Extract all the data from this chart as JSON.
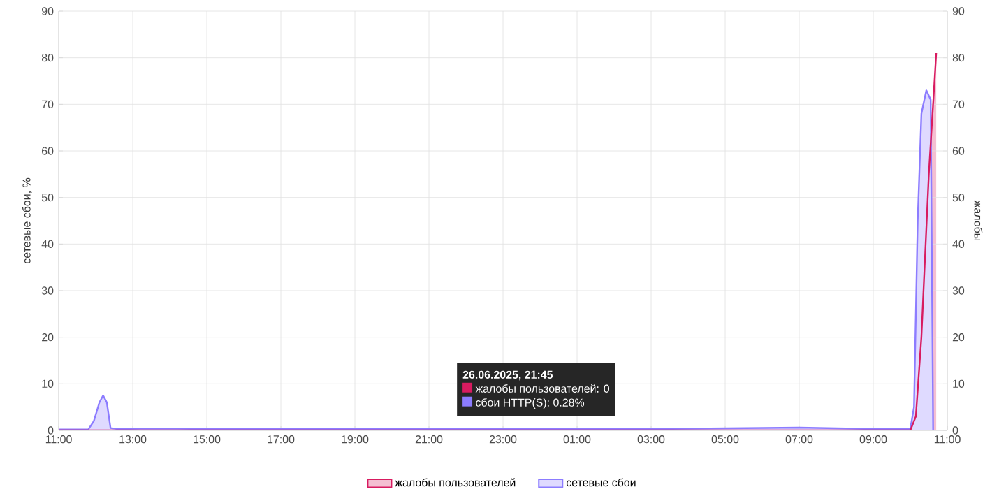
{
  "chart_data": {
    "type": "area",
    "ylabel": "сетевые сбои, %",
    "y2label": "жалобы",
    "xlim": [
      "2025-06-26T11:00",
      "2025-06-27T11:00"
    ],
    "xticks": [
      {
        "value": "2025-06-26T11:00",
        "label": "11:00"
      },
      {
        "value": "2025-06-26T13:00",
        "label": "13:00"
      },
      {
        "value": "2025-06-26T15:00",
        "label": "15:00"
      },
      {
        "value": "2025-06-26T17:00",
        "label": "17:00"
      },
      {
        "value": "2025-06-26T19:00",
        "label": "19:00"
      },
      {
        "value": "2025-06-26T21:00",
        "label": "21:00"
      },
      {
        "value": "2025-06-26T23:00",
        "label": "23:00"
      },
      {
        "value": "2025-06-27T01:00",
        "label": "01:00"
      },
      {
        "value": "2025-06-27T03:00",
        "label": "03:00"
      },
      {
        "value": "2025-06-27T05:00",
        "label": "05:00"
      },
      {
        "value": "2025-06-27T07:00",
        "label": "07:00"
      },
      {
        "value": "2025-06-27T09:00",
        "label": "09:00"
      },
      {
        "value": "2025-06-27T11:00",
        "label": "11:00"
      }
    ],
    "ylim": [
      0,
      90
    ],
    "yticks": [
      0,
      10,
      20,
      30,
      40,
      50,
      60,
      70,
      80,
      90
    ],
    "y2lim": [
      0,
      90
    ],
    "y2ticks": [
      0,
      10,
      20,
      30,
      40,
      50,
      60,
      70,
      80,
      90
    ],
    "series": [
      {
        "name": "жалобы пользователей",
        "color": "#d81b60",
        "axis": "y2",
        "x": [
          "2025-06-26T11:00",
          "2025-06-26T15:00",
          "2025-06-26T19:00",
          "2025-06-26T21:45",
          "2025-06-27T01:00",
          "2025-06-27T05:00",
          "2025-06-27T09:00",
          "2025-06-27T10:00",
          "2025-06-27T10:09",
          "2025-06-27T10:18",
          "2025-06-27T10:30",
          "2025-06-27T10:42"
        ],
        "values": [
          0,
          0,
          0,
          0,
          0,
          0,
          0,
          0,
          3,
          20,
          55,
          81
        ]
      },
      {
        "name": "сетевые сбои",
        "color": "#8c7cff",
        "axis": "y",
        "x": [
          "2025-06-26T11:00",
          "2025-06-26T11:48",
          "2025-06-26T11:57",
          "2025-06-26T12:06",
          "2025-06-26T12:12",
          "2025-06-26T12:18",
          "2025-06-26T12:24",
          "2025-06-26T12:36",
          "2025-06-26T13:30",
          "2025-06-26T15:00",
          "2025-06-26T17:00",
          "2025-06-26T19:00",
          "2025-06-26T21:45",
          "2025-06-26T23:00",
          "2025-06-27T03:00",
          "2025-06-27T07:00",
          "2025-06-27T09:00",
          "2025-06-27T10:00",
          "2025-06-27T10:06",
          "2025-06-27T10:12",
          "2025-06-27T10:18",
          "2025-06-27T10:26",
          "2025-06-27T10:33",
          "2025-06-27T10:37"
        ],
        "values": [
          0.2,
          0.2,
          2,
          6,
          7.5,
          6,
          0.5,
          0.3,
          0.4,
          0.3,
          0.3,
          0.3,
          0.3,
          0.3,
          0.3,
          0.6,
          0.3,
          0.3,
          5,
          45,
          68,
          73,
          71,
          0
        ]
      }
    ],
    "annotations": [
      "26.06.2025, 21:45",
      "жалобы пользователей: 0",
      "сбои HTTP(S): 0.28%"
    ],
    "grid": true,
    "legend": "bottom",
    "marker": "none",
    "line_style": "solid"
  }
}
